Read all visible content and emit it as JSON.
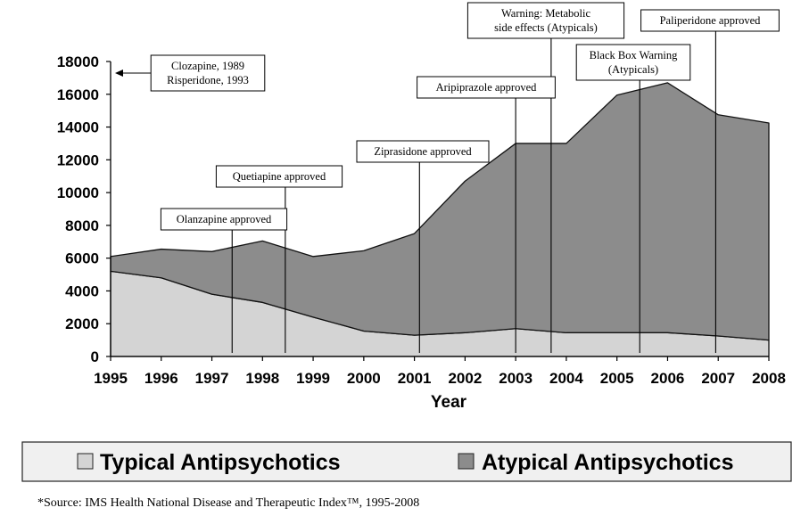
{
  "chart_data": {
    "type": "area",
    "stacked": true,
    "x": [
      1995,
      1996,
      1997,
      1998,
      1999,
      2000,
      2001,
      2002,
      2003,
      2004,
      2005,
      2006,
      2007,
      2008
    ],
    "series": [
      {
        "name": "Typical Antipsychotics",
        "color": "#d4d4d4",
        "values": [
          5200,
          4800,
          3800,
          3300,
          2400,
          1550,
          1300,
          1450,
          1700,
          1450,
          1450,
          1450,
          1250,
          1000
        ]
      },
      {
        "name": "Atypical Antipsychotics",
        "color": "#8c8c8c",
        "values": [
          900,
          1750,
          2600,
          3750,
          3700,
          4900,
          6200,
          9250,
          11300,
          11550,
          14500,
          15250,
          13500,
          13250
        ]
      }
    ],
    "total": [
      6100,
      6550,
      6400,
      7050,
      6100,
      6450,
      7500,
      10700,
      13000,
      13000,
      15950,
      16700,
      14750,
      14250
    ],
    "xticks": [
      "1995",
      "1996",
      "1997",
      "1998",
      "1999",
      "2000",
      "2001",
      "2002",
      "2003",
      "2004",
      "2005",
      "2006",
      "2007",
      "2008"
    ],
    "yticks": [
      "0",
      "2000",
      "4000",
      "6000",
      "8000",
      "10000",
      "12000",
      "14000",
      "16000",
      "18000"
    ],
    "ylim": [
      0,
      18000
    ],
    "xlabel": "Year",
    "ylabel": "",
    "grid": false,
    "legend_position": "bottom",
    "annotations": [
      {
        "lines": [
          "Clozapine, 1989",
          "Risperidone, 1993"
        ],
        "arrow": "left"
      },
      {
        "lines": [
          "Olanzapine approved"
        ],
        "x": 1997.4
      },
      {
        "lines": [
          "Quetiapine approved"
        ],
        "x": 1998.45
      },
      {
        "lines": [
          "Ziprasidone approved"
        ],
        "x": 2001.1
      },
      {
        "lines": [
          "Aripiprazole approved"
        ],
        "x": 2003.0
      },
      {
        "lines": [
          "Warning: Metabolic",
          "side effects (Atypicals)"
        ],
        "x": 2003.7
      },
      {
        "lines": [
          "Black Box Warning",
          "(Atypicals)"
        ],
        "x": 2005.45
      },
      {
        "lines": [
          "Paliperidone approved"
        ],
        "x": 2006.95
      }
    ]
  },
  "legend": {
    "typical_label": "Typical Antipsychotics",
    "atypical_label": "Atypical Antipsychotics"
  },
  "source_note": "*Source: IMS Health National Disease and Therapeutic Index™, 1995-2008"
}
